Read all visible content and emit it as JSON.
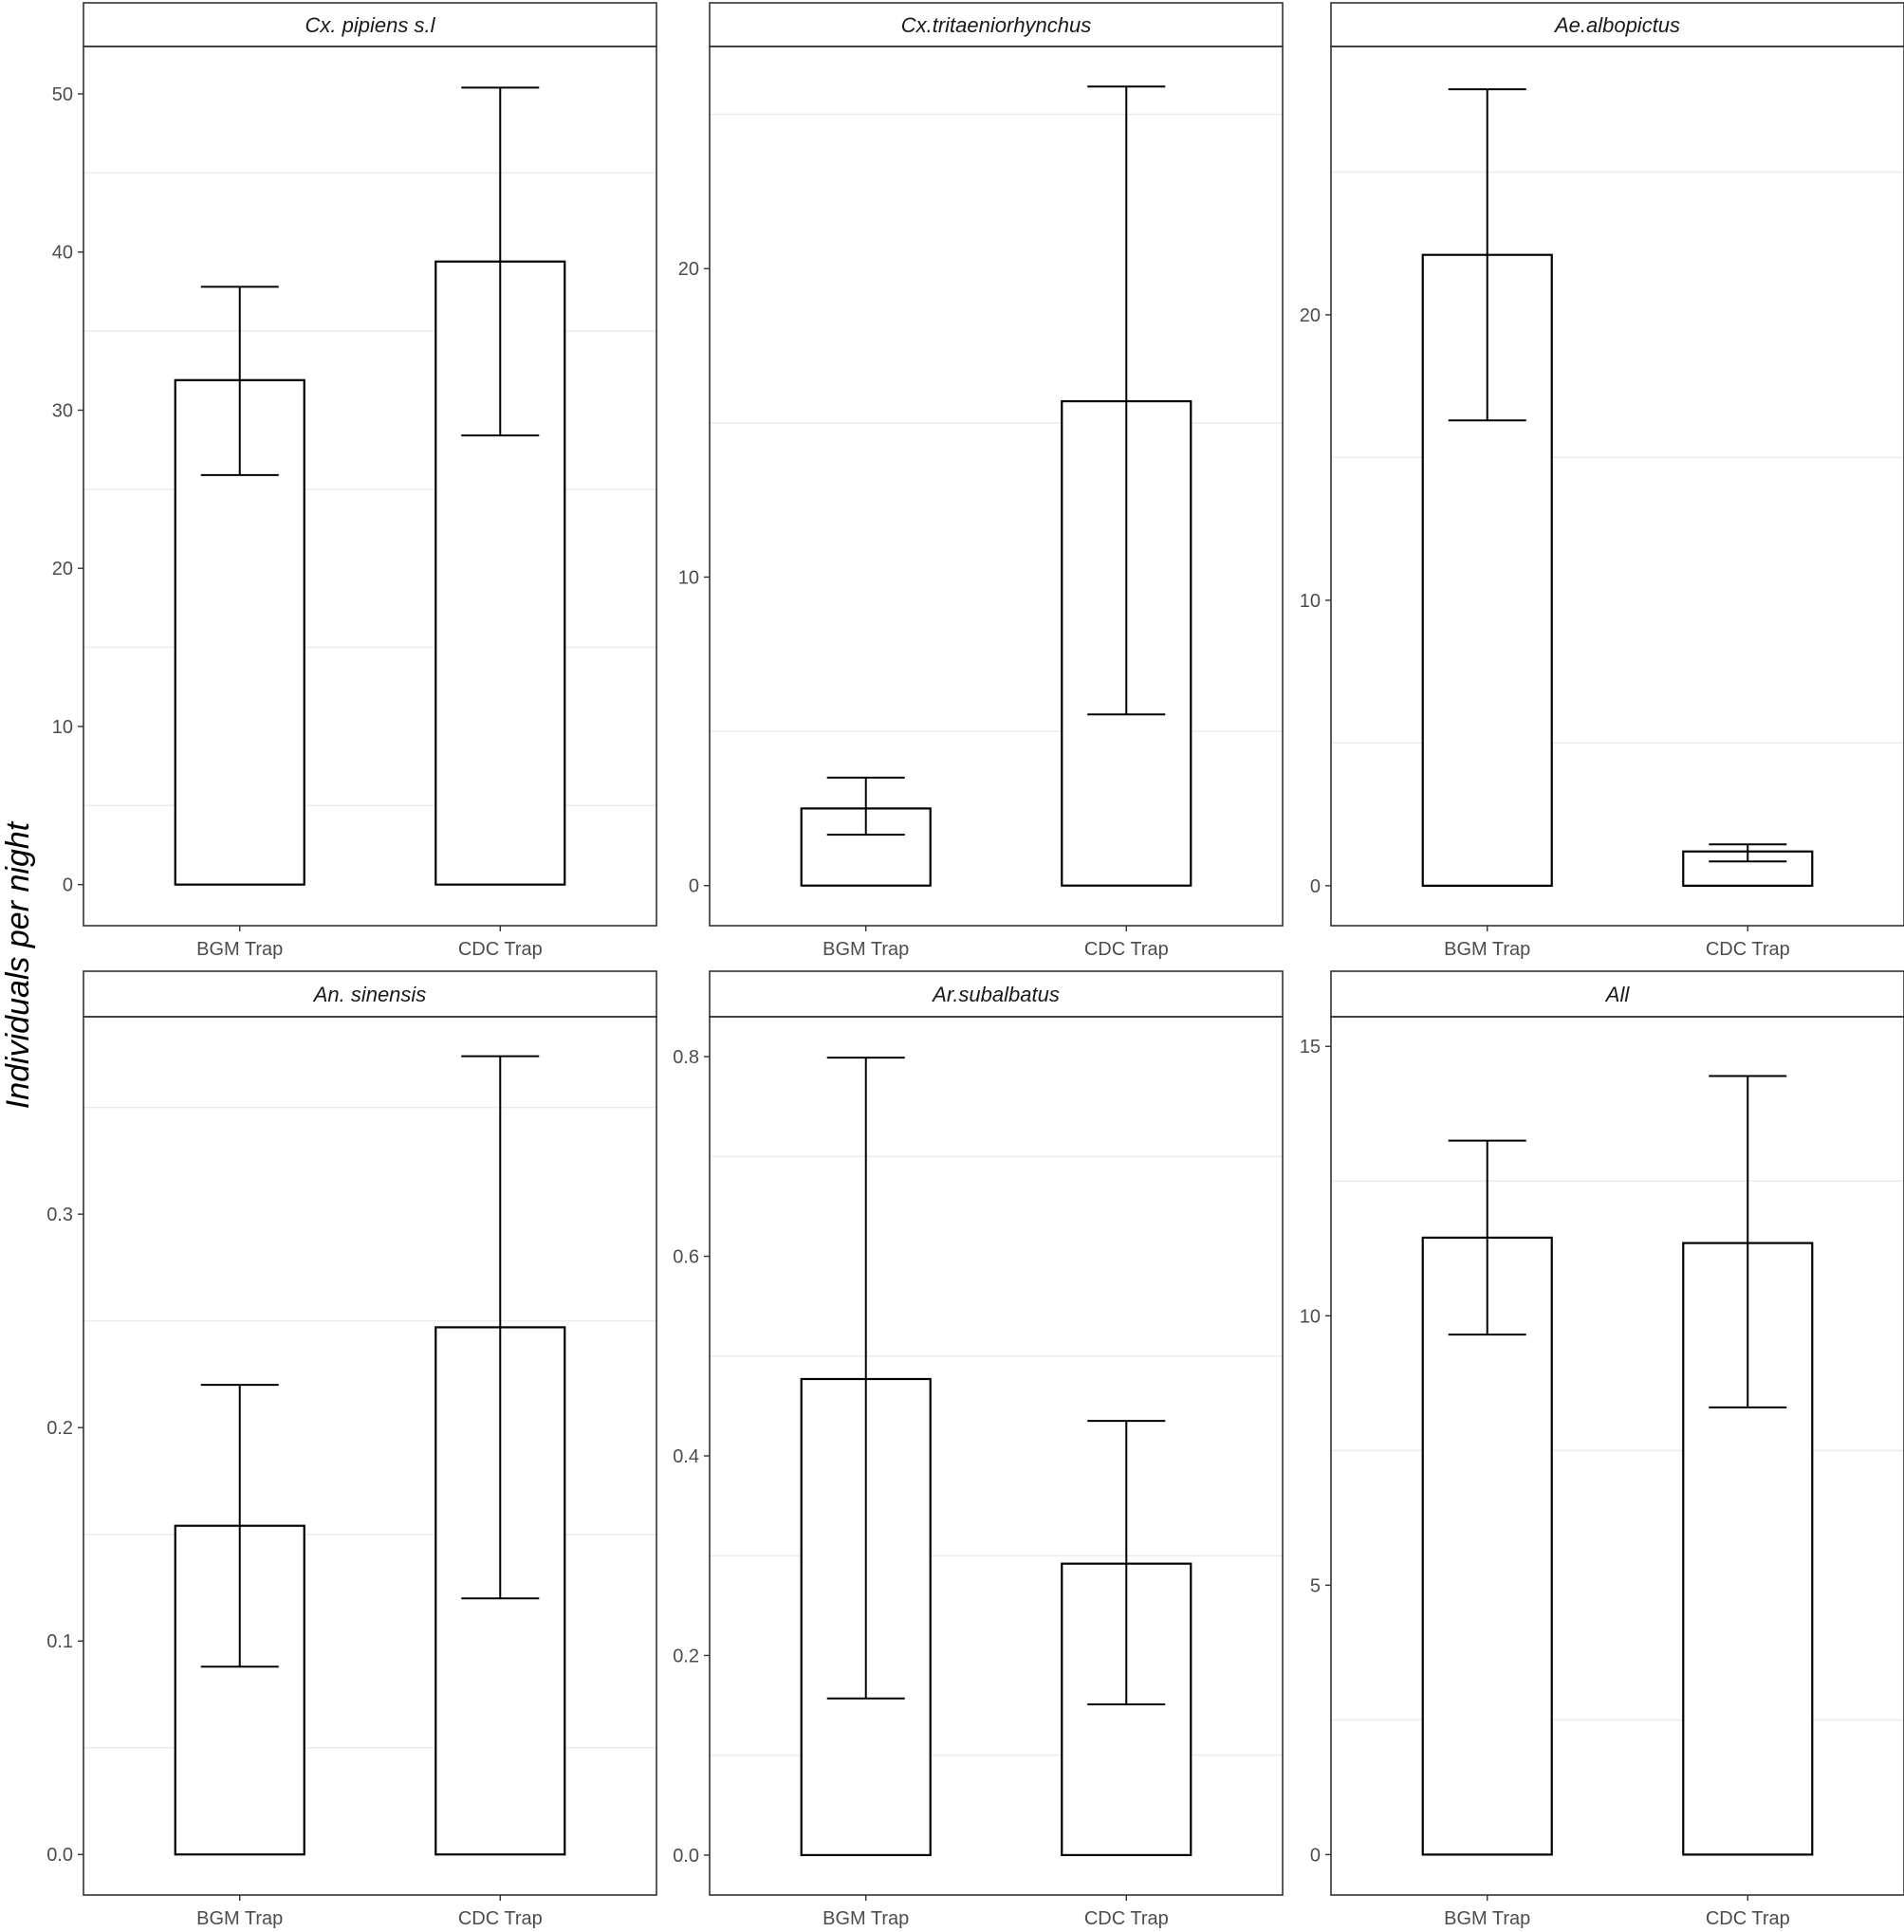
{
  "chart_data": {
    "type": "bar",
    "ylabel": "Individuals per night",
    "categories": [
      "BGM Trap",
      "CDC Trap"
    ],
    "grid": true,
    "panels": [
      {
        "title": "Cx. pipiens s.l",
        "ylim": [
          -2.6,
          53
        ],
        "yticks": [
          0,
          10,
          20,
          30,
          40,
          50
        ],
        "values": [
          31.9,
          39.4
        ],
        "err_low": [
          25.9,
          28.4
        ],
        "err_high": [
          37.8,
          50.4
        ]
      },
      {
        "title": "Cx.tritaeniorhynchus",
        "ylim": [
          -1.3,
          27.2
        ],
        "yticks": [
          0,
          10,
          20
        ],
        "values": [
          2.5,
          15.7
        ],
        "err_low": [
          1.65,
          5.55
        ],
        "err_high": [
          3.5,
          25.9
        ]
      },
      {
        "title": "Ae.albopictus",
        "ylim": [
          -1.4,
          29.4
        ],
        "yticks": [
          0,
          10,
          20
        ],
        "values": [
          22.1,
          1.2
        ],
        "err_low": [
          16.3,
          0.85
        ],
        "err_high": [
          27.9,
          1.45
        ]
      },
      {
        "title": "An. sinensis",
        "ylim": [
          -0.019,
          0.3925
        ],
        "yticks": [
          0,
          0.1,
          0.2,
          0.3
        ],
        "yticklabels": [
          "0.0",
          "0.1",
          "0.2",
          "0.3"
        ],
        "values": [
          0.154,
          0.247
        ],
        "err_low": [
          0.088,
          0.12
        ],
        "err_high": [
          0.22,
          0.374
        ]
      },
      {
        "title": "Ar.subalbatus",
        "ylim": [
          -0.04,
          0.84
        ],
        "yticks": [
          0,
          0.2,
          0.4,
          0.6,
          0.8
        ],
        "yticklabels": [
          "0.0",
          "0.2",
          "0.4",
          "0.6",
          "0.8"
        ],
        "values": [
          0.477,
          0.292
        ],
        "err_low": [
          0.157,
          0.151
        ],
        "err_high": [
          0.799,
          0.435
        ]
      },
      {
        "title": "All",
        "ylim": [
          -0.75,
          15.55
        ],
        "yticks": [
          0,
          5,
          10,
          15
        ],
        "values": [
          11.45,
          11.35
        ],
        "err_low": [
          9.65,
          8.3
        ],
        "err_high": [
          13.25,
          14.45
        ]
      }
    ]
  }
}
